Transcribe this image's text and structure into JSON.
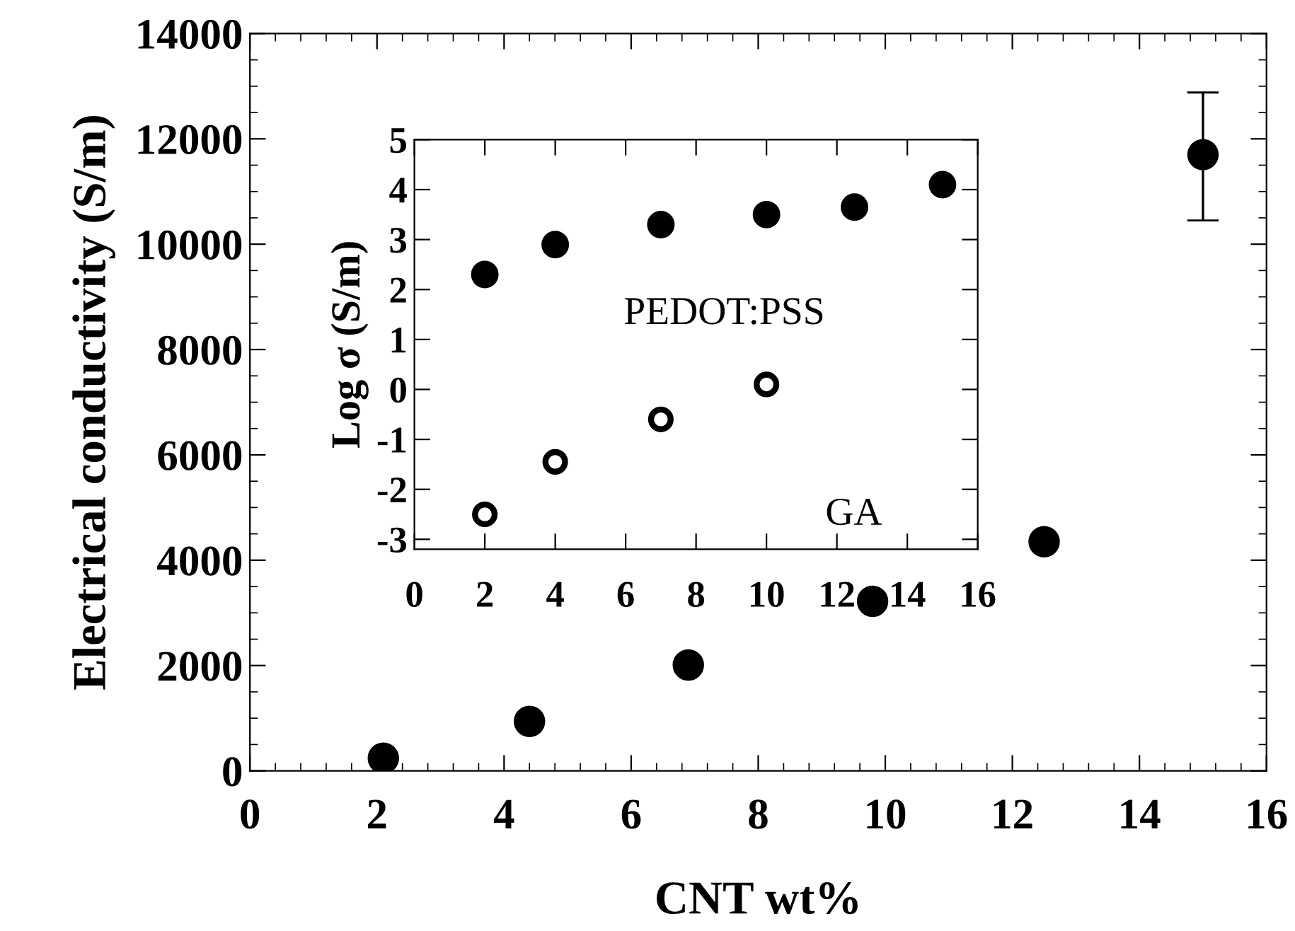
{
  "chart_data": [
    {
      "type": "scatter",
      "xlabel": "CNT wt%",
      "ylabel": "Electrical conductivity (S/m)",
      "xlim": [
        0,
        16
      ],
      "xticks": [
        0,
        2,
        4,
        6,
        8,
        10,
        12,
        14,
        16
      ],
      "ylim": [
        0,
        14000
      ],
      "yticks": [
        0,
        2000,
        4000,
        6000,
        8000,
        10000,
        12000,
        14000
      ],
      "marker": "circle",
      "grid": false,
      "series": [
        {
          "color": "#000000",
          "x": [
            2.1,
            4.4,
            6.9,
            9.8,
            12.5,
            15.0
          ],
          "values": [
            240,
            940,
            2010,
            3220,
            4350,
            11700
          ],
          "errors": [
            null,
            null,
            null,
            null,
            null,
            [
              10450,
              12880
            ]
          ]
        }
      ]
    },
    {
      "type": "scatter",
      "ylabel": "Log σ (S/m)",
      "xlim": [
        0,
        16
      ],
      "xticks": [
        0,
        2,
        4,
        6,
        8,
        10,
        12,
        14,
        16
      ],
      "ylim": [
        -3.2,
        5
      ],
      "yticks": [
        -3,
        -2,
        -1,
        0,
        1,
        2,
        3,
        4,
        5
      ],
      "marker": "circle",
      "grid": false,
      "legend": "bottom right",
      "series": [
        {
          "name": "PEDOT:PSS",
          "color": "#000000",
          "x": [
            2,
            4,
            7,
            10,
            12.5,
            15
          ],
          "values": [
            2.3,
            2.9,
            3.3,
            3.5,
            3.65,
            4.1
          ]
        },
        {
          "name": "GA",
          "color": "#000000",
          "x": [
            2,
            4,
            7,
            10
          ],
          "values": [
            -2.5,
            -1.45,
            -0.6,
            0.1
          ]
        }
      ]
    }
  ]
}
